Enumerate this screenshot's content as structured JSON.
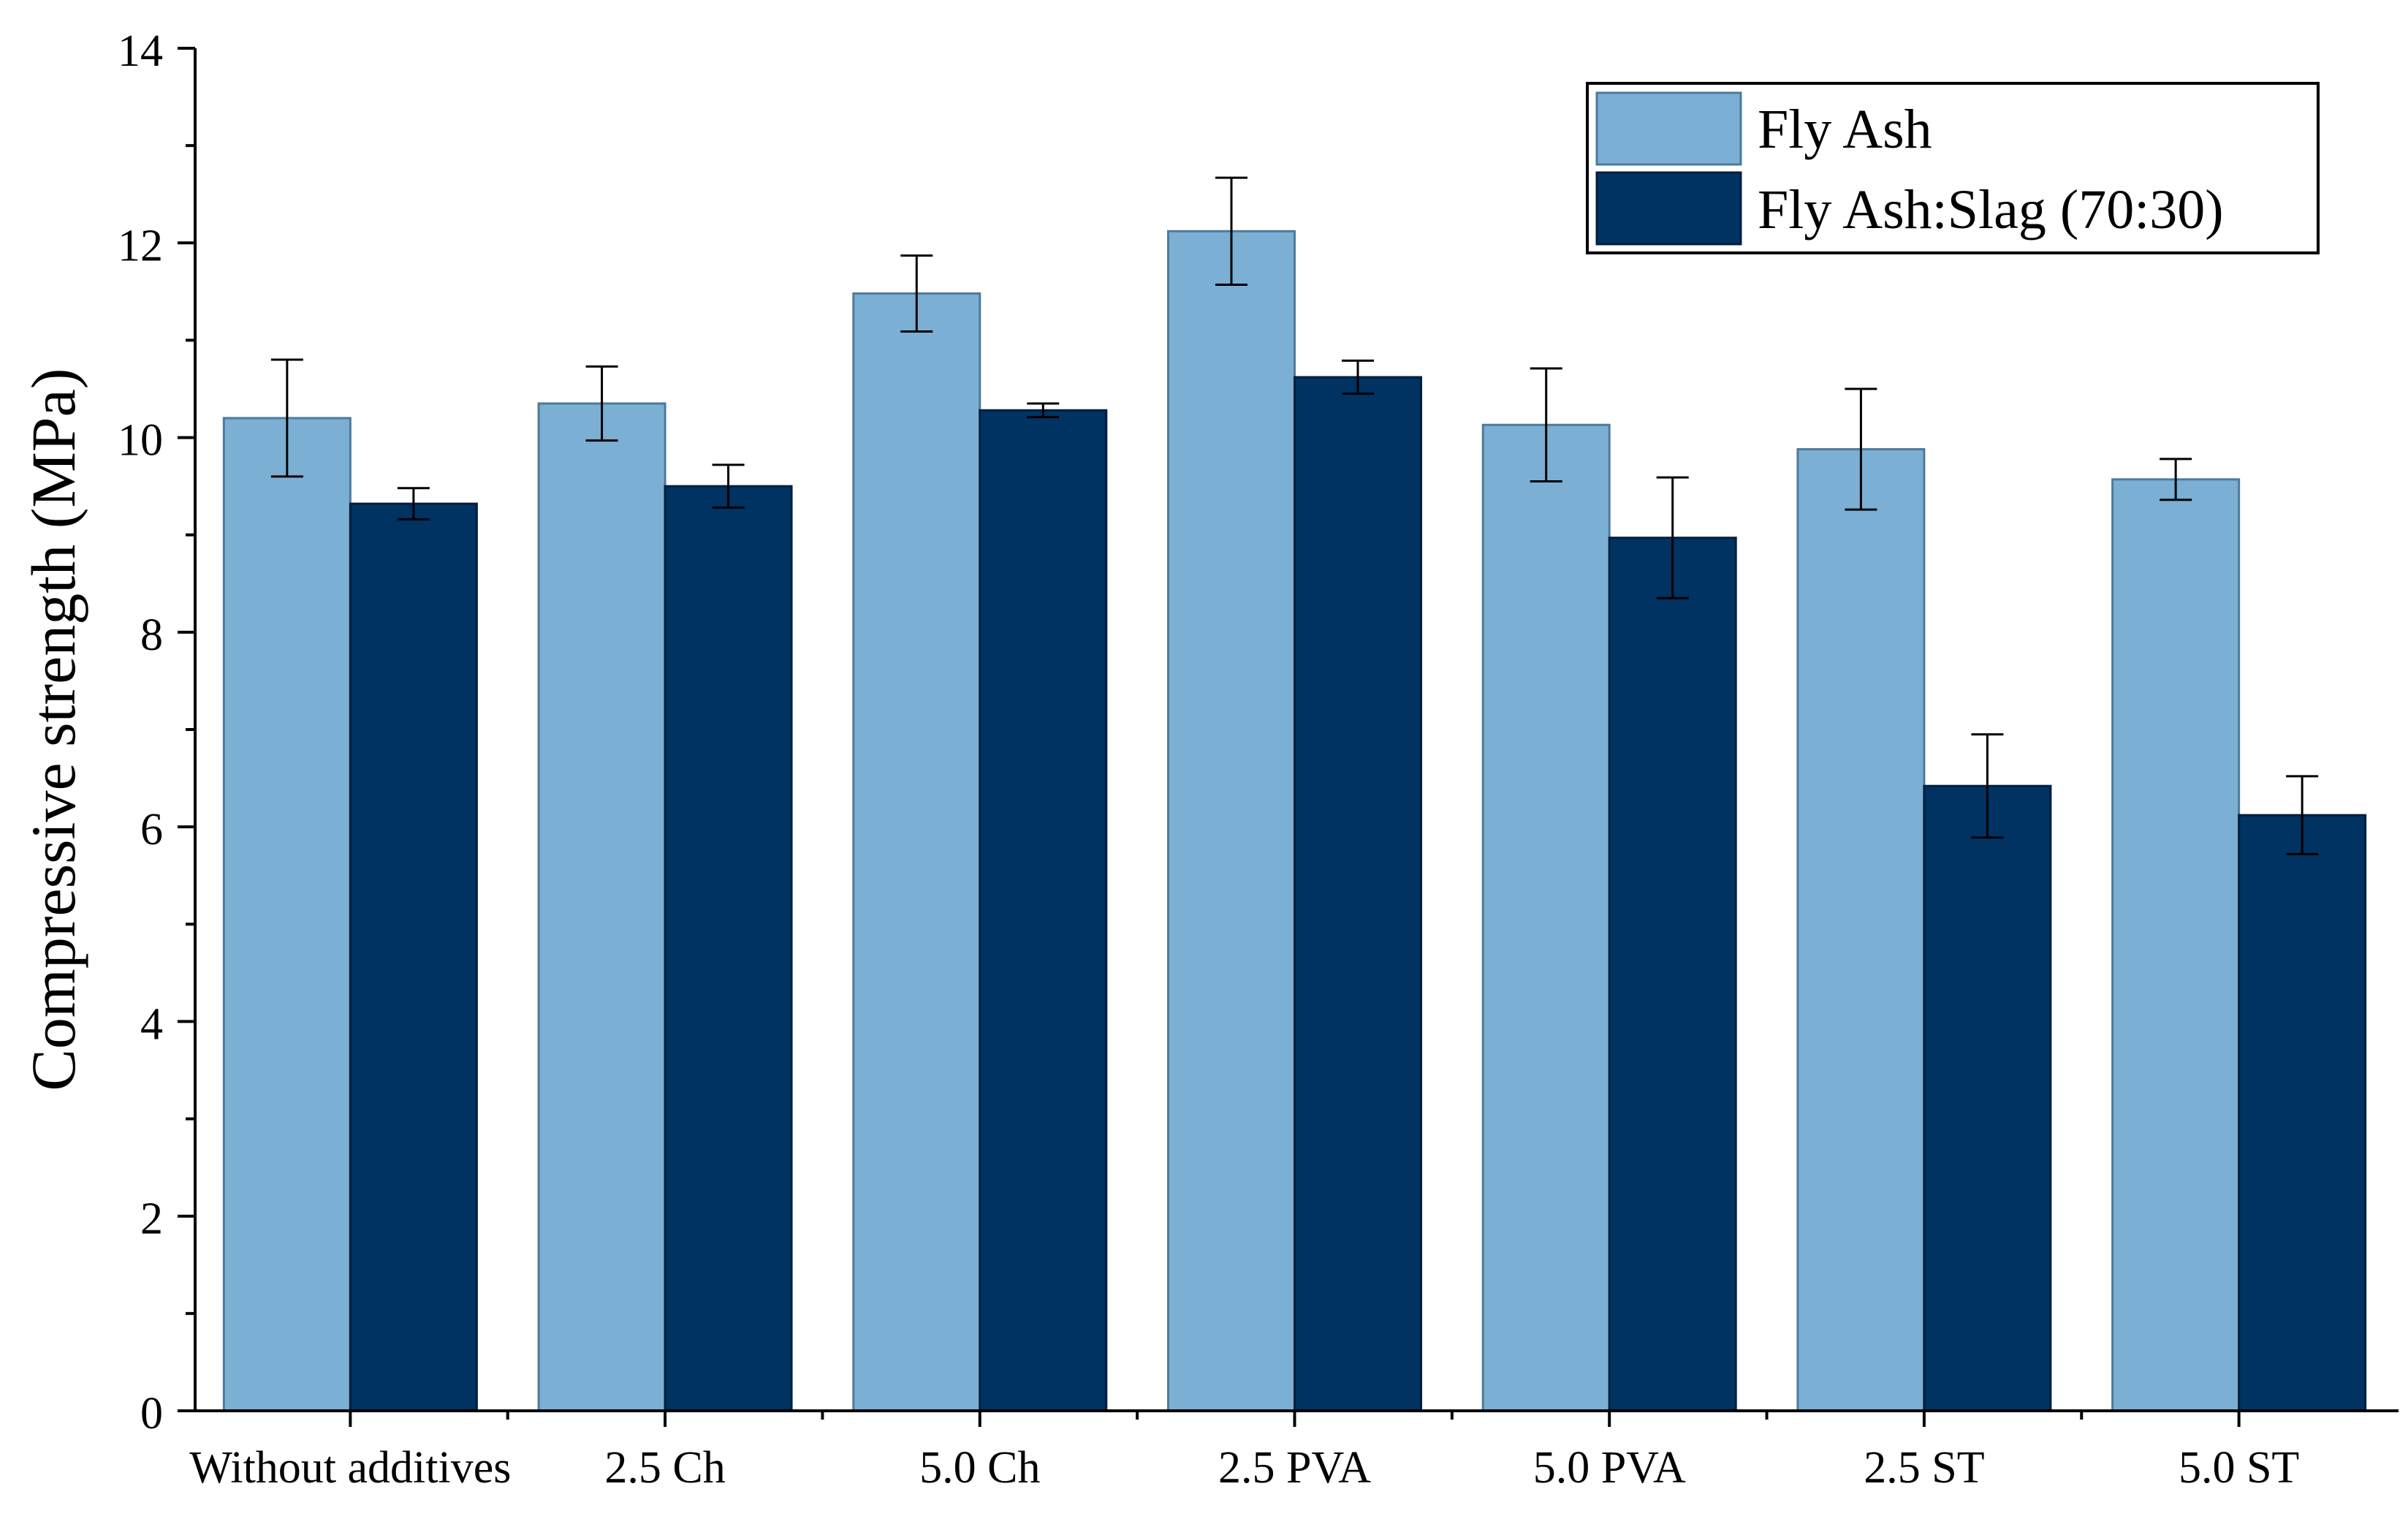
{
  "chart_data": {
    "type": "bar",
    "title": "",
    "xlabel": "",
    "ylabel": "Compressive strength (MPa)",
    "ylim": [
      0,
      14
    ],
    "y_ticks": [
      "0",
      "2",
      "4",
      "6",
      "8",
      "10",
      "12",
      "14"
    ],
    "y_tick_values": [
      0,
      2,
      4,
      6,
      8,
      10,
      12,
      14
    ],
    "grid": false,
    "legend_position": "top-right",
    "categories": [
      "Without additives",
      "2.5 Ch",
      "5.0 Ch",
      "2.5 PVA",
      "5.0 PVA",
      "2.5 ST",
      "5.0 ST"
    ],
    "series": [
      {
        "name": "Fly Ash",
        "color": "#7BAFD4",
        "edge_color": "#4F7A9A",
        "values": [
          10.2,
          10.35,
          11.48,
          12.12,
          10.13,
          9.88,
          9.57
        ],
        "errors": [
          0.6,
          0.38,
          0.39,
          0.55,
          0.58,
          0.62,
          0.21
        ]
      },
      {
        "name": "Fly Ash:Slag (70:30)",
        "color": "#003262",
        "edge_color": "#001F3D",
        "values": [
          9.32,
          9.5,
          10.28,
          10.62,
          8.97,
          6.42,
          6.12
        ],
        "errors": [
          0.16,
          0.22,
          0.07,
          0.17,
          0.62,
          0.53,
          0.4
        ]
      }
    ]
  }
}
